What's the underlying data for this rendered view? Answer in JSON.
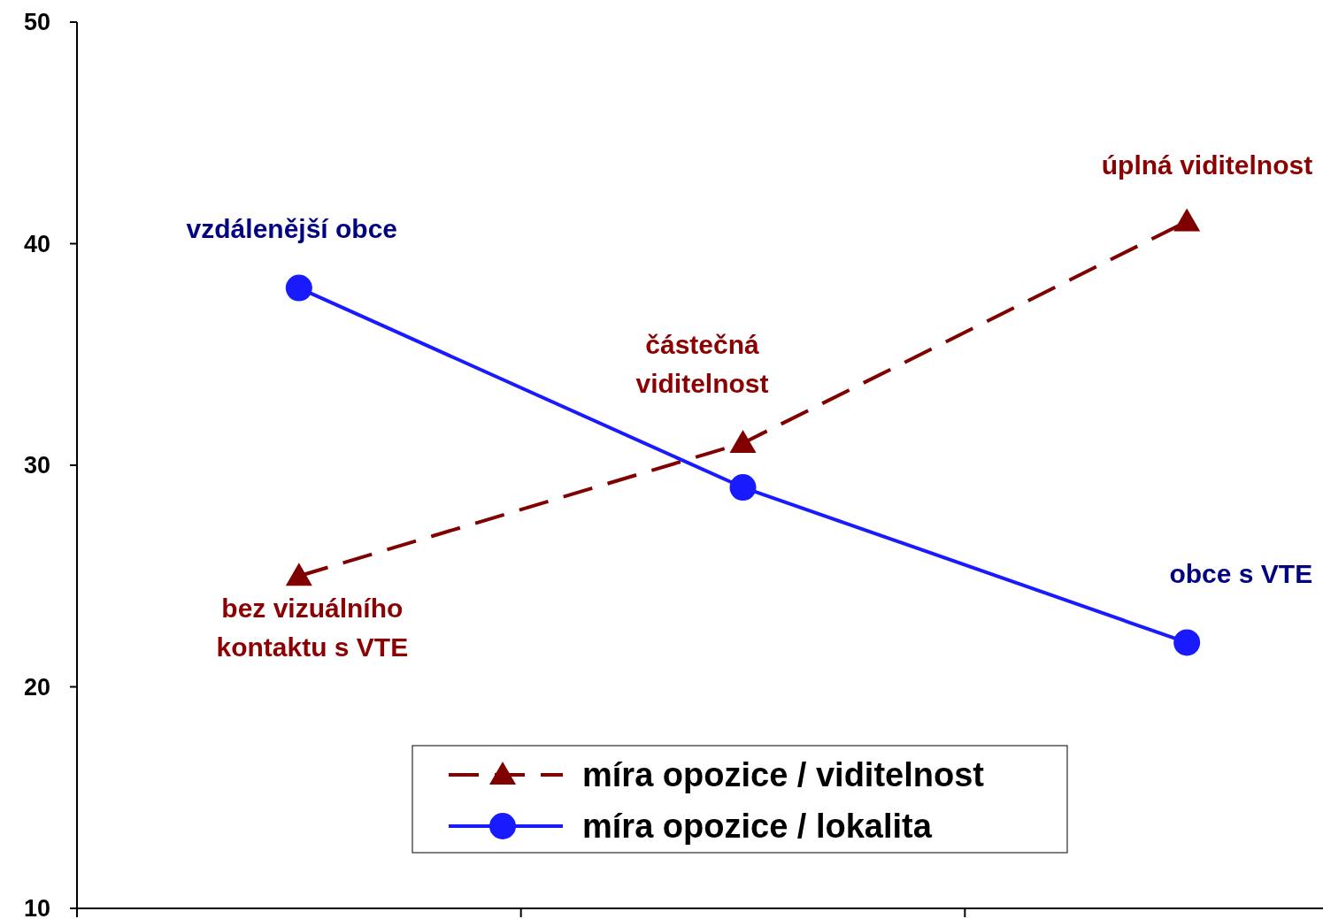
{
  "chart_data": {
    "type": "line",
    "categories": [
      null,
      null,
      null
    ],
    "series": [
      {
        "name": "míra opozice / viditelnost",
        "color": "#800000",
        "values": [
          25,
          31,
          41
        ],
        "marker": "triangle",
        "line_style": "dashed"
      },
      {
        "name": "míra opozice / lokalita",
        "color": "#1a1aff",
        "values": [
          38,
          29,
          22
        ],
        "marker": "circle",
        "line_style": "solid"
      }
    ],
    "annotations": [
      "bez vizuálního\nkontaktu s VTE",
      "částečná\nviditelnost",
      "úplná viditelnost",
      "vzdálenější obce",
      "obce s VTE"
    ],
    "ylim": [
      10,
      50
    ],
    "yticks": [
      10,
      20,
      30,
      40,
      50
    ],
    "grid": false,
    "legend": "bottom"
  }
}
